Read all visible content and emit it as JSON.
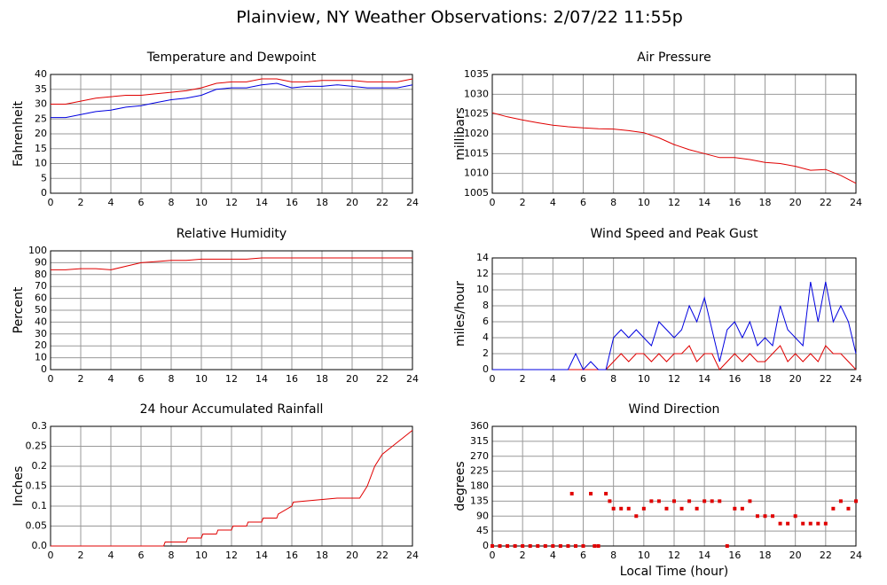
{
  "title": "Plainview, NY Weather Observations: 2/07/22 11:55p",
  "chart_data": [
    {
      "type": "line",
      "title": "Temperature and Dewpoint",
      "ylabel": "Fahrenheit",
      "xlim": [
        0,
        24
      ],
      "xticks": [
        0,
        2,
        4,
        6,
        8,
        10,
        12,
        14,
        16,
        18,
        20,
        22,
        24
      ],
      "ylim": [
        0,
        40
      ],
      "yticks": [
        0,
        5,
        10,
        15,
        20,
        25,
        30,
        35,
        40
      ],
      "grid": true,
      "x": [
        0,
        1,
        2,
        3,
        4,
        5,
        6,
        7,
        8,
        9,
        10,
        11,
        12,
        13,
        14,
        15,
        16,
        17,
        18,
        19,
        20,
        21,
        22,
        23,
        24
      ],
      "series": [
        {
          "color": "#e00000",
          "values": [
            30,
            30,
            31,
            32,
            32.5,
            33,
            33,
            33.5,
            34,
            34.5,
            35.5,
            37,
            37.5,
            37.5,
            38.5,
            38.5,
            37.5,
            37.5,
            38,
            38,
            38,
            37.5,
            37.5,
            37.5,
            38.5
          ]
        },
        {
          "color": "#0000e0",
          "values": [
            25.5,
            25.5,
            26.5,
            27.5,
            28,
            29,
            29.5,
            30.5,
            31.5,
            32,
            33,
            35,
            35.5,
            35.5,
            36.5,
            37,
            35.5,
            36,
            36,
            36.5,
            36,
            35.5,
            35.5,
            35.5,
            36.5
          ]
        }
      ]
    },
    {
      "type": "line",
      "title": "Air Pressure",
      "ylabel": "millibars",
      "xlim": [
        0,
        24
      ],
      "xticks": [
        0,
        2,
        4,
        6,
        8,
        10,
        12,
        14,
        16,
        18,
        20,
        22,
        24
      ],
      "ylim": [
        1005,
        1035
      ],
      "yticks": [
        1005,
        1010,
        1015,
        1020,
        1025,
        1030,
        1035
      ],
      "grid": true,
      "x": [
        0,
        1,
        2,
        3,
        4,
        5,
        6,
        7,
        8,
        9,
        10,
        11,
        12,
        13,
        14,
        15,
        16,
        17,
        18,
        19,
        20,
        21,
        22,
        23,
        24
      ],
      "series": [
        {
          "color": "#e00000",
          "values": [
            1025.3,
            1024.3,
            1023.5,
            1022.8,
            1022.2,
            1021.8,
            1021.5,
            1021.3,
            1021.2,
            1020.8,
            1020.3,
            1019,
            1017.3,
            1016,
            1015,
            1014,
            1014,
            1013.5,
            1012.8,
            1012.5,
            1011.8,
            1010.8,
            1011,
            1009.5,
            1007.5
          ]
        }
      ]
    },
    {
      "type": "line",
      "title": "Relative Humidity",
      "ylabel": "Percent",
      "xlim": [
        0,
        24
      ],
      "xticks": [
        0,
        2,
        4,
        6,
        8,
        10,
        12,
        14,
        16,
        18,
        20,
        22,
        24
      ],
      "ylim": [
        0,
        100
      ],
      "yticks": [
        0,
        10,
        20,
        30,
        40,
        50,
        60,
        70,
        80,
        90,
        100
      ],
      "grid": true,
      "x": [
        0,
        1,
        2,
        3,
        4,
        5,
        6,
        7,
        8,
        9,
        10,
        11,
        12,
        13,
        14,
        15,
        16,
        17,
        18,
        19,
        20,
        21,
        22,
        23,
        24
      ],
      "series": [
        {
          "color": "#e00000",
          "values": [
            84,
            84,
            85,
            85,
            84,
            87,
            90,
            91,
            92,
            92,
            93,
            93,
            93,
            93,
            94,
            94,
            94,
            94,
            94,
            94,
            94,
            94,
            94,
            94,
            94
          ]
        }
      ]
    },
    {
      "type": "line",
      "title": "Wind Speed and Peak Gust",
      "ylabel": "miles/hour",
      "xlim": [
        0,
        24
      ],
      "xticks": [
        0,
        2,
        4,
        6,
        8,
        10,
        12,
        14,
        16,
        18,
        20,
        22,
        24
      ],
      "ylim": [
        0,
        14
      ],
      "yticks": [
        0,
        2,
        4,
        6,
        8,
        10,
        12,
        14
      ],
      "grid": true,
      "x": [
        0,
        0.5,
        1,
        1.5,
        2,
        2.5,
        3,
        3.5,
        4,
        4.5,
        5,
        5.5,
        6,
        6.5,
        7,
        7.5,
        8,
        8.5,
        9,
        9.5,
        10,
        10.5,
        11,
        11.5,
        12,
        12.5,
        13,
        13.5,
        14,
        14.5,
        15,
        15.5,
        16,
        16.5,
        17,
        17.5,
        18,
        18.5,
        19,
        19.5,
        20,
        20.5,
        21,
        21.5,
        22,
        22.5,
        23,
        23.5,
        24
      ],
      "series": [
        {
          "color": "#e00000",
          "values": [
            0,
            0,
            0,
            0,
            0,
            0,
            0,
            0,
            0,
            0,
            0,
            0,
            0,
            0,
            0,
            0,
            1,
            2,
            1,
            2,
            2,
            1,
            2,
            1,
            2,
            2,
            3,
            1,
            2,
            2,
            0,
            1,
            2,
            1,
            2,
            1,
            1,
            2,
            3,
            1,
            2,
            1,
            2,
            1,
            3,
            2,
            2,
            1,
            0
          ]
        },
        {
          "color": "#0000e0",
          "values": [
            0,
            0,
            0,
            0,
            0,
            0,
            0,
            0,
            0,
            0,
            0,
            2,
            0,
            1,
            0,
            0,
            4,
            5,
            4,
            5,
            4,
            3,
            6,
            5,
            4,
            5,
            8,
            6,
            9,
            5,
            1,
            5,
            6,
            4,
            6,
            3,
            4,
            3,
            8,
            5,
            4,
            3,
            11,
            6,
            11,
            6,
            8,
            6,
            2
          ]
        }
      ]
    },
    {
      "type": "line",
      "title": "24 hour Accumulated Rainfall",
      "ylabel": "Inches",
      "xlim": [
        0,
        24
      ],
      "xticks": [
        0,
        2,
        4,
        6,
        8,
        10,
        12,
        14,
        16,
        18,
        20,
        22,
        24
      ],
      "ylim": [
        0,
        0.3
      ],
      "yticks": [
        {
          "value": 0,
          "label": "0.0"
        },
        0.05,
        0.1,
        0.15,
        0.2,
        0.25,
        0.3
      ],
      "grid": true,
      "x": [
        0,
        7.5,
        7.6,
        9,
        9.1,
        10,
        10.1,
        11,
        11.1,
        12,
        12.1,
        13,
        13.1,
        14,
        14.1,
        15,
        15.1,
        16,
        16.1,
        19,
        20.5,
        21,
        21.5,
        22,
        23,
        24
      ],
      "series": [
        {
          "color": "#e00000",
          "values": [
            0,
            0,
            0.01,
            0.01,
            0.02,
            0.02,
            0.03,
            0.03,
            0.04,
            0.04,
            0.05,
            0.05,
            0.06,
            0.06,
            0.07,
            0.07,
            0.08,
            0.1,
            0.11,
            0.12,
            0.12,
            0.15,
            0.2,
            0.23,
            0.26,
            0.29
          ]
        }
      ]
    },
    {
      "type": "scatter",
      "title": "Wind Direction",
      "ylabel": "degrees",
      "xlabel": "Local Time (hour)",
      "xlim": [
        0,
        24
      ],
      "xticks": [
        0,
        2,
        4,
        6,
        8,
        10,
        12,
        14,
        16,
        18,
        20,
        22,
        24
      ],
      "ylim": [
        0,
        360
      ],
      "yticks": [
        0,
        45,
        90,
        135,
        180,
        225,
        270,
        315,
        360
      ],
      "grid": true,
      "x": [
        0,
        0.5,
        1,
        1.5,
        2,
        2.5,
        3,
        3.5,
        4,
        4.5,
        5,
        5.25,
        5.5,
        6,
        6.5,
        6.75,
        7,
        7.5,
        7.75,
        8,
        8.5,
        9,
        9.5,
        10,
        10.5,
        11,
        11.5,
        12,
        12.5,
        13,
        13.5,
        14,
        14.5,
        15,
        15.5,
        16,
        16.5,
        17,
        17.5,
        18,
        18.5,
        19,
        19.5,
        20,
        20.5,
        21,
        21.5,
        22,
        22.5,
        23,
        23.5,
        24
      ],
      "series": [
        {
          "color": "#e00000",
          "values": [
            0,
            0,
            0,
            0,
            0,
            0,
            0,
            0,
            0,
            0,
            0,
            157.5,
            0,
            0,
            157.5,
            0,
            0,
            157.5,
            135,
            112.5,
            112.5,
            112.5,
            90,
            112.5,
            135,
            135,
            112.5,
            135,
            112.5,
            135,
            112.5,
            135,
            135,
            135,
            0,
            112.5,
            112.5,
            135,
            90,
            90,
            90,
            67.5,
            67.5,
            90,
            67.5,
            67.5,
            67.5,
            67.5,
            112.5,
            135,
            112.5,
            135
          ]
        }
      ]
    }
  ]
}
